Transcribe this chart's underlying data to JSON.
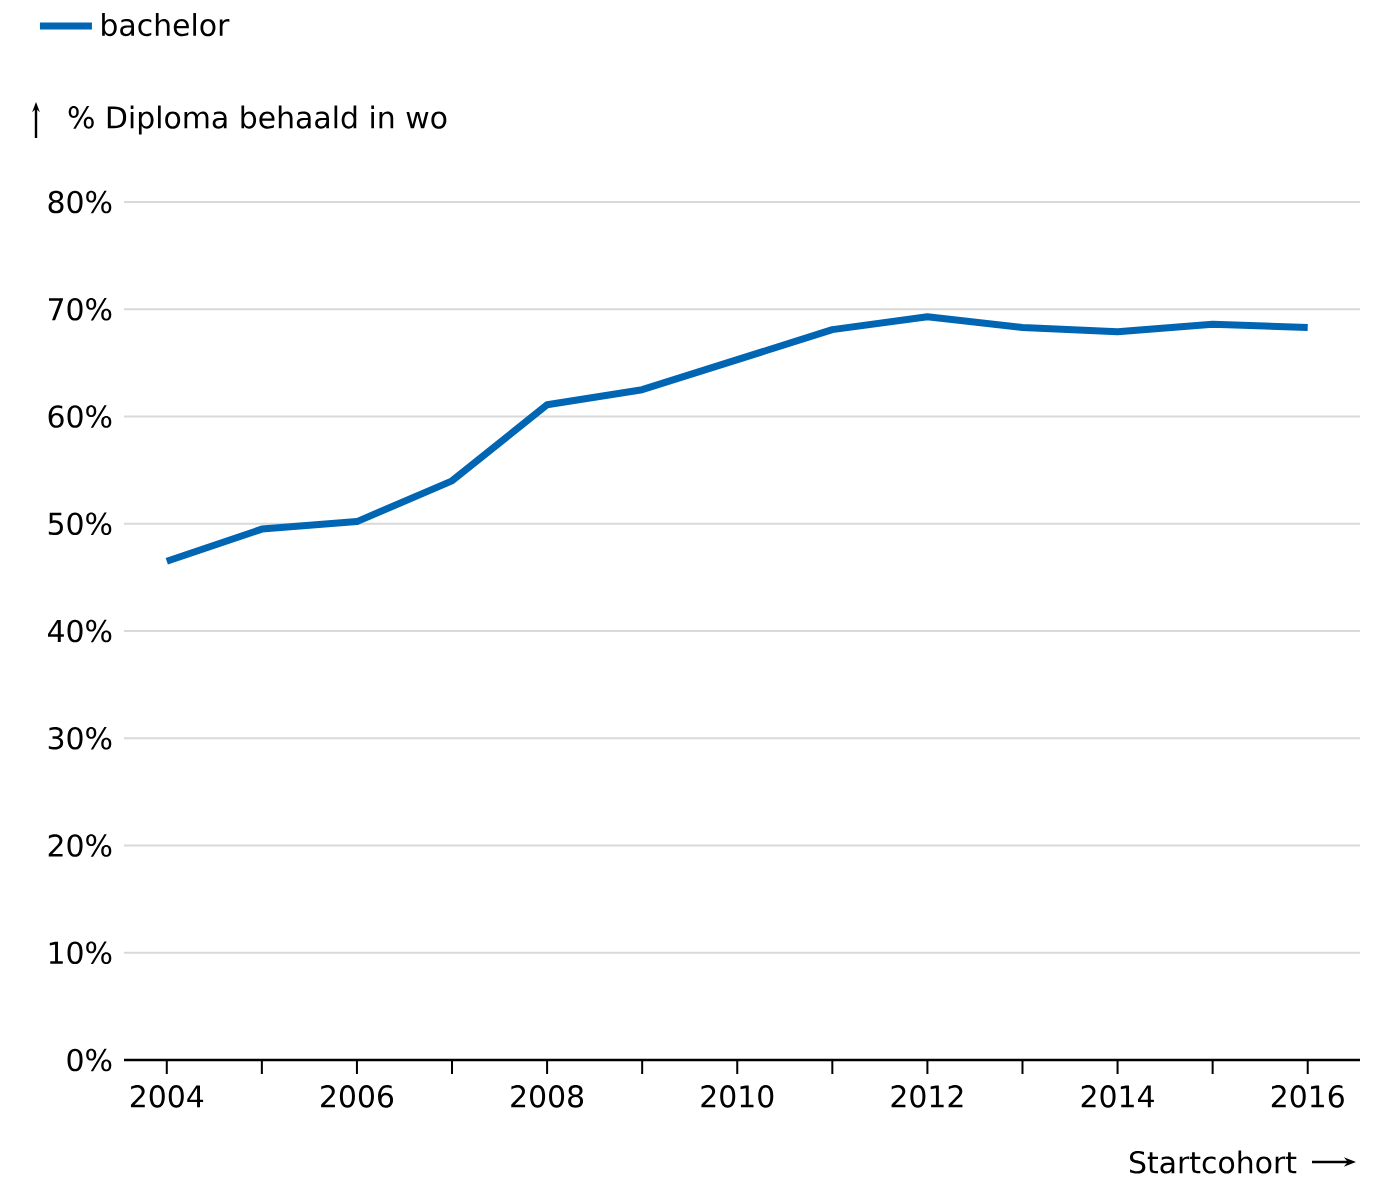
{
  "chart_data": {
    "type": "line",
    "x": [
      2004,
      2005,
      2006,
      2007,
      2008,
      2009,
      2010,
      2011,
      2012,
      2013,
      2014,
      2015,
      2016
    ],
    "series": [
      {
        "name": "bachelor",
        "color": "#0066b3",
        "values": [
          46.5,
          49.5,
          50.2,
          54.0,
          61.1,
          62.5,
          65.3,
          68.1,
          69.3,
          68.3,
          67.9,
          68.6,
          68.3
        ]
      }
    ],
    "xlabel": "Startcohort",
    "ylabel": "% Diploma behaald in wo",
    "xlim": [
      2003.55,
      2016.55
    ],
    "xticks": [
      2004,
      {
        "value": 2005,
        "label": null
      },
      2006,
      {
        "value": 2007,
        "label": null
      },
      2008,
      {
        "value": 2009,
        "label": null
      },
      2010,
      {
        "value": 2011,
        "label": null
      },
      2012,
      {
        "value": 2013,
        "label": null
      },
      2014,
      {
        "value": 2015,
        "label": null
      },
      2016
    ],
    "ylim": [
      0,
      80
    ],
    "yticks": [
      {
        "value": 0,
        "label": "0%"
      },
      {
        "value": 10,
        "label": "10%"
      },
      {
        "value": 20,
        "label": "20%"
      },
      {
        "value": 30,
        "label": "30%"
      },
      {
        "value": 40,
        "label": "40%"
      },
      {
        "value": 50,
        "label": "50%"
      },
      {
        "value": 60,
        "label": "60%"
      },
      {
        "value": 70,
        "label": "70%"
      },
      {
        "value": 80,
        "label": "80%"
      }
    ],
    "grid": "y",
    "legend": "top left"
  }
}
